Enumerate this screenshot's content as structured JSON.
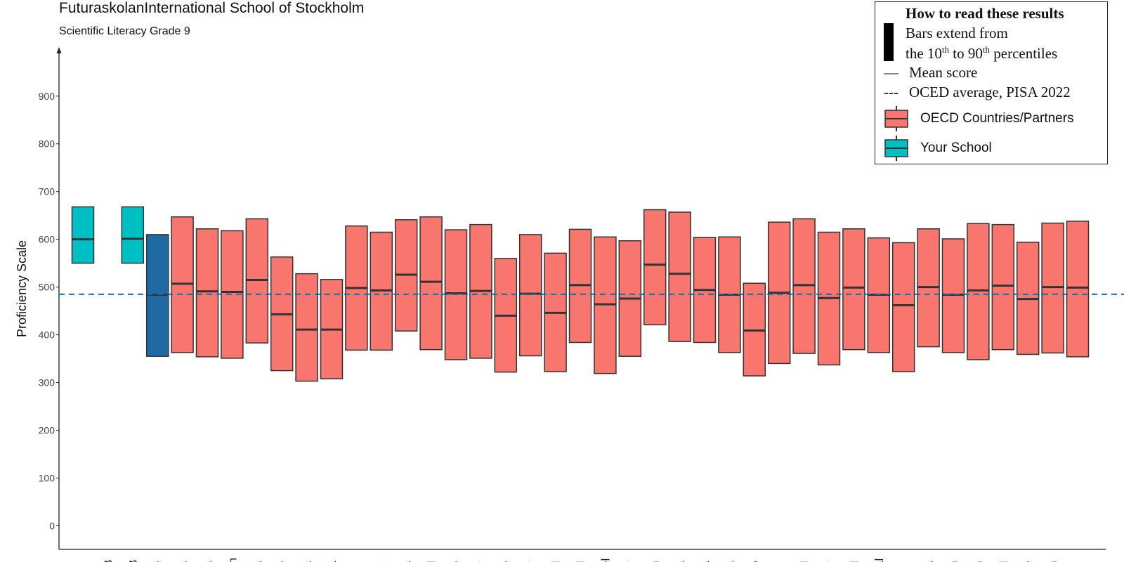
{
  "title": "FuturaskolanInternational School of Stockholm",
  "subtitle": "Scientific Literacy Grade 9",
  "legend": {
    "heading": "How to read these results",
    "bars_line1": "Bars extend from",
    "bars_line2_prefix": "the 10",
    "bars_sup1": "th",
    "bars_line2_mid": " to 90",
    "bars_sup2": "th",
    "bars_line2_suffix": " percentiles",
    "mean_label": "Mean score",
    "oecd_label": "OCED average, PISA 2022",
    "mean_symbol": "—",
    "dash_symbol": "---",
    "item_oecd": "OECD Countries/Partners",
    "item_school": "Your School"
  },
  "colors": {
    "oecd": "#f8766d",
    "school": "#00bfc4",
    "highlight": "#1f6aa5",
    "reference": "#1f6aa5",
    "outline": "#333333"
  },
  "chart_data": {
    "type": "box",
    "ylabel": "Proficiency Scale",
    "ylim": [
      -50,
      1000
    ],
    "yticks": [
      0,
      100,
      200,
      300,
      400,
      500,
      600,
      700,
      800,
      900
    ],
    "reference_line": 485,
    "grid": false,
    "legend_placement": "top-right",
    "categories": [
      "s",
      "B",
      "B",
      "e",
      "a",
      "a",
      "m",
      "a",
      "e",
      "a",
      "a",
      "c",
      "k",
      "a",
      "d",
      "e",
      "y",
      "e",
      "y",
      "d",
      "d",
      "el",
      "y",
      "n",
      "a",
      "a",
      "a",
      "o",
      "s",
      "d",
      "y",
      "d",
      "al",
      "c",
      "a",
      "n",
      "n",
      "d",
      "e",
      "n",
      "s"
    ],
    "series": [
      {
        "group": "school",
        "values": [
          [
            550,
            600,
            668
          ],
          null,
          [
            550,
            601,
            668
          ]
        ]
      },
      {
        "group": "oecd",
        "values": [
          [
            355,
            484,
            610
          ],
          [
            363,
            507,
            647
          ],
          [
            354,
            491,
            622
          ],
          [
            351,
            490,
            618
          ],
          [
            383,
            515,
            643
          ],
          [
            325,
            443,
            563
          ],
          [
            303,
            411,
            528
          ],
          [
            308,
            411,
            516
          ],
          [
            368,
            498,
            628
          ],
          [
            368,
            493,
            615
          ],
          [
            408,
            526,
            641
          ],
          [
            369,
            511,
            647
          ],
          [
            348,
            487,
            620
          ],
          [
            351,
            492,
            631
          ],
          [
            322,
            440,
            560
          ],
          [
            356,
            486,
            610
          ],
          [
            323,
            446,
            571
          ],
          [
            384,
            504,
            621
          ],
          [
            319,
            464,
            605
          ],
          [
            355,
            476,
            597
          ],
          [
            421,
            547,
            662
          ],
          [
            386,
            528,
            657
          ],
          [
            384,
            494,
            604
          ],
          [
            363,
            484,
            605
          ],
          [
            314,
            409,
            508
          ],
          [
            340,
            488,
            636
          ],
          [
            361,
            504,
            643
          ],
          [
            337,
            477,
            615
          ],
          [
            369,
            499,
            622
          ],
          [
            363,
            484,
            603
          ],
          [
            323,
            462,
            593
          ],
          [
            375,
            500,
            622
          ],
          [
            363,
            484,
            601
          ],
          [
            348,
            493,
            633
          ],
          [
            369,
            503,
            631
          ],
          [
            359,
            475,
            594
          ],
          [
            362,
            500,
            634
          ],
          [
            354,
            499,
            638
          ]
        ]
      }
    ]
  }
}
